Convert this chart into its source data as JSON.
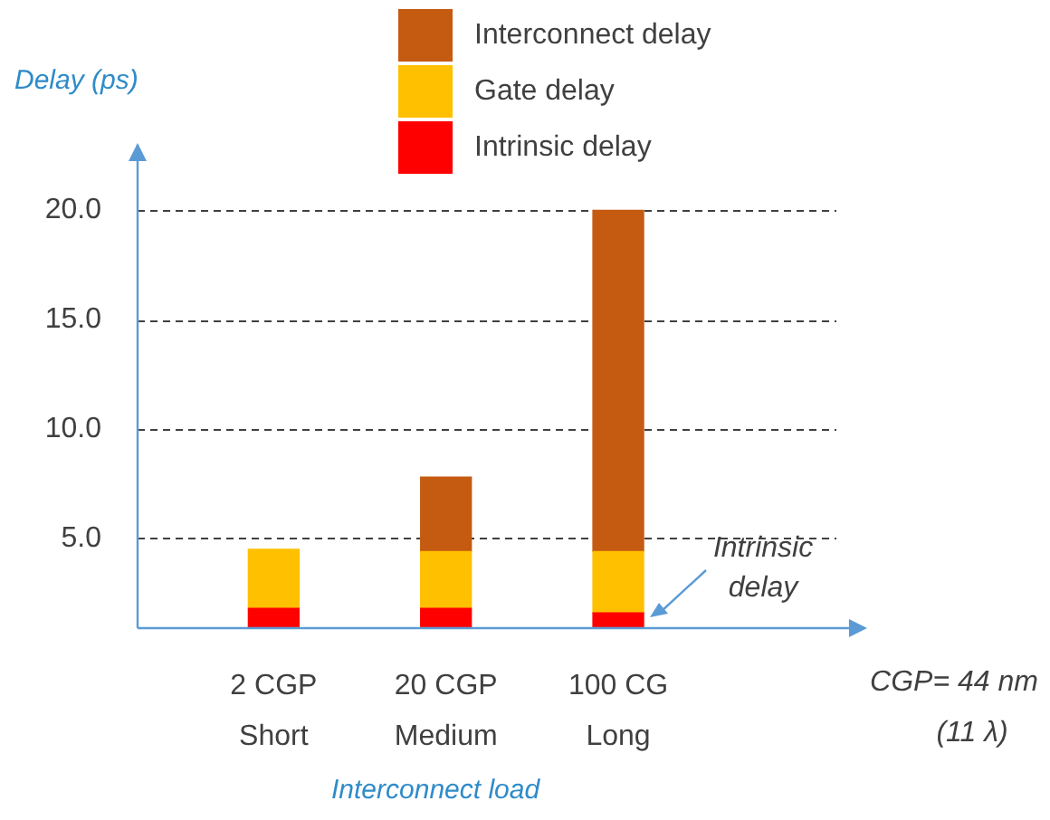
{
  "chart_data": {
    "type": "bar",
    "stacked": true,
    "ylabel": "Delay (ps)",
    "xlabel": "Interconnect load",
    "categories": [
      "2 CGP\nShort",
      "20 CGP\nMedium",
      "100 CG\nLong"
    ],
    "series": [
      {
        "name": "Intrinsic delay",
        "color": "#ff0000",
        "values": [
          1.8,
          1.8,
          1.6
        ]
      },
      {
        "name": "Gate delay",
        "color": "#ffc000",
        "values": [
          2.7,
          2.6,
          2.8
        ]
      },
      {
        "name": "Interconnect delay",
        "color": "#c55a11",
        "values": [
          null,
          3.4,
          15.6
        ]
      }
    ],
    "ylim": [
      0.9,
      23
    ],
    "yticks": [
      {
        "value": 5,
        "label": "5.0"
      },
      {
        "value": 10,
        "label": "10.0"
      },
      {
        "value": 15,
        "label": "15.0"
      },
      {
        "value": 20,
        "label": "20.0"
      }
    ],
    "grid": "y",
    "legend": "top",
    "annotations": [
      "Intrinsic\ndelay",
      "CGP= 44 nm\n(11 λ)"
    ]
  }
}
